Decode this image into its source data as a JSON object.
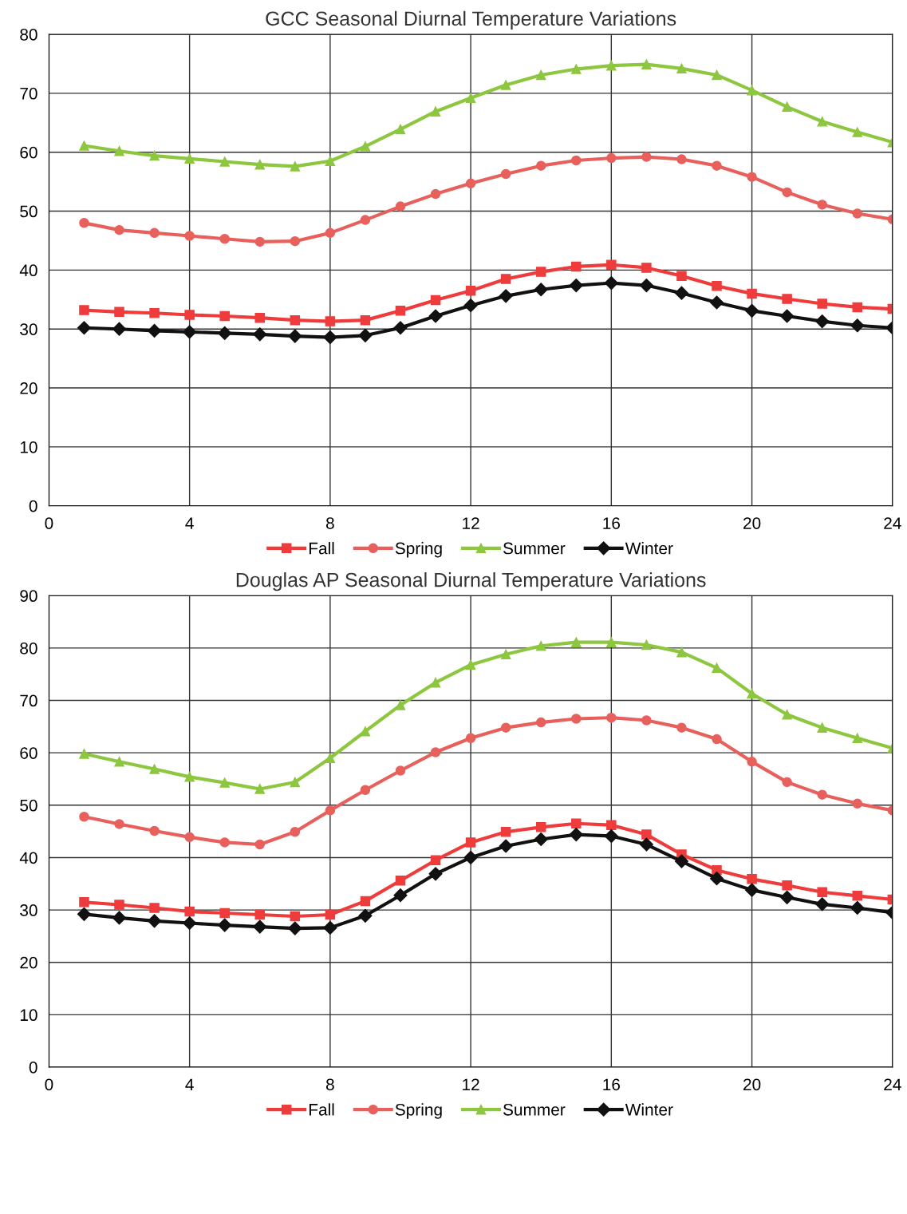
{
  "chart_data": [
    {
      "type": "line",
      "title": "GCC Seasonal Diurnal Temperature Variations",
      "x": [
        1,
        2,
        3,
        4,
        5,
        6,
        7,
        8,
        9,
        10,
        11,
        12,
        13,
        14,
        15,
        16,
        17,
        18,
        19,
        20,
        21,
        22,
        23,
        24
      ],
      "xlim": [
        0,
        24
      ],
      "xticks": [
        0,
        4,
        8,
        12,
        16,
        20,
        24
      ],
      "ylim": [
        0,
        80
      ],
      "yticks": [
        0,
        10,
        20,
        30,
        40,
        50,
        60,
        70,
        80
      ],
      "grid": true,
      "legend": "bottom",
      "series": [
        {
          "name": "Fall",
          "color": "#ee3b3b",
          "marker": "square",
          "values": [
            33.2,
            32.9,
            32.7,
            32.4,
            32.2,
            31.9,
            31.5,
            31.3,
            31.5,
            33.1,
            34.9,
            36.5,
            38.5,
            39.7,
            40.6,
            40.9,
            40.4,
            39.0,
            37.3,
            36.0,
            35.1,
            34.3,
            33.7,
            33.4
          ]
        },
        {
          "name": "Spring",
          "color": "#e8605c",
          "marker": "circle",
          "values": [
            48.0,
            46.8,
            46.3,
            45.8,
            45.3,
            44.8,
            44.9,
            46.3,
            48.5,
            50.8,
            52.9,
            54.7,
            56.3,
            57.7,
            58.6,
            59.0,
            59.2,
            58.8,
            57.7,
            55.8,
            53.2,
            51.1,
            49.6,
            48.6
          ]
        },
        {
          "name": "Summer",
          "color": "#8dc63f",
          "marker": "triangle",
          "values": [
            61.1,
            60.2,
            59.4,
            58.9,
            58.4,
            57.9,
            57.6,
            58.5,
            61.0,
            63.9,
            66.9,
            69.2,
            71.4,
            73.1,
            74.1,
            74.7,
            74.9,
            74.2,
            73.1,
            70.5,
            67.7,
            65.2,
            63.4,
            61.7
          ]
        },
        {
          "name": "Winter",
          "color": "#111111",
          "marker": "diamond",
          "values": [
            30.2,
            30.0,
            29.7,
            29.5,
            29.3,
            29.1,
            28.8,
            28.6,
            28.9,
            30.2,
            32.2,
            34.0,
            35.6,
            36.7,
            37.4,
            37.8,
            37.4,
            36.1,
            34.5,
            33.1,
            32.2,
            31.3,
            30.6,
            30.2
          ]
        }
      ]
    },
    {
      "type": "line",
      "title": "Douglas AP Seasonal Diurnal Temperature Variations",
      "x": [
        1,
        2,
        3,
        4,
        5,
        6,
        7,
        8,
        9,
        10,
        11,
        12,
        13,
        14,
        15,
        16,
        17,
        18,
        19,
        20,
        21,
        22,
        23,
        24
      ],
      "xlim": [
        0,
        24
      ],
      "xticks": [
        0,
        4,
        8,
        12,
        16,
        20,
        24
      ],
      "ylim": [
        0,
        90
      ],
      "yticks": [
        0,
        10,
        20,
        30,
        40,
        50,
        60,
        70,
        80,
        90
      ],
      "grid": true,
      "legend": "bottom",
      "series": [
        {
          "name": "Fall",
          "color": "#ee3b3b",
          "marker": "square",
          "values": [
            31.5,
            31.0,
            30.4,
            29.7,
            29.4,
            29.1,
            28.8,
            29.1,
            31.7,
            35.6,
            39.5,
            42.9,
            44.9,
            45.8,
            46.5,
            46.2,
            44.4,
            40.6,
            37.6,
            35.9,
            34.7,
            33.4,
            32.7,
            32.0
          ]
        },
        {
          "name": "Spring",
          "color": "#e8605c",
          "marker": "circle",
          "values": [
            47.8,
            46.4,
            45.1,
            43.9,
            42.9,
            42.5,
            44.9,
            49.0,
            52.9,
            56.6,
            60.1,
            62.8,
            64.8,
            65.8,
            66.5,
            66.7,
            66.2,
            64.8,
            62.6,
            58.3,
            54.4,
            52.0,
            50.3,
            49.0
          ]
        },
        {
          "name": "Summer",
          "color": "#8dc63f",
          "marker": "triangle",
          "values": [
            59.8,
            58.3,
            56.9,
            55.4,
            54.3,
            53.1,
            54.4,
            59.0,
            64.1,
            69.1,
            73.4,
            76.8,
            78.8,
            80.4,
            81.1,
            81.1,
            80.6,
            79.2,
            76.2,
            71.3,
            67.3,
            64.8,
            62.8,
            60.9
          ]
        },
        {
          "name": "Winter",
          "color": "#111111",
          "marker": "diamond",
          "values": [
            29.2,
            28.5,
            27.9,
            27.5,
            27.1,
            26.8,
            26.5,
            26.6,
            28.9,
            32.8,
            36.9,
            40.0,
            42.2,
            43.5,
            44.4,
            44.1,
            42.5,
            39.3,
            36.0,
            33.8,
            32.4,
            31.1,
            30.4,
            29.5
          ]
        }
      ]
    }
  ]
}
